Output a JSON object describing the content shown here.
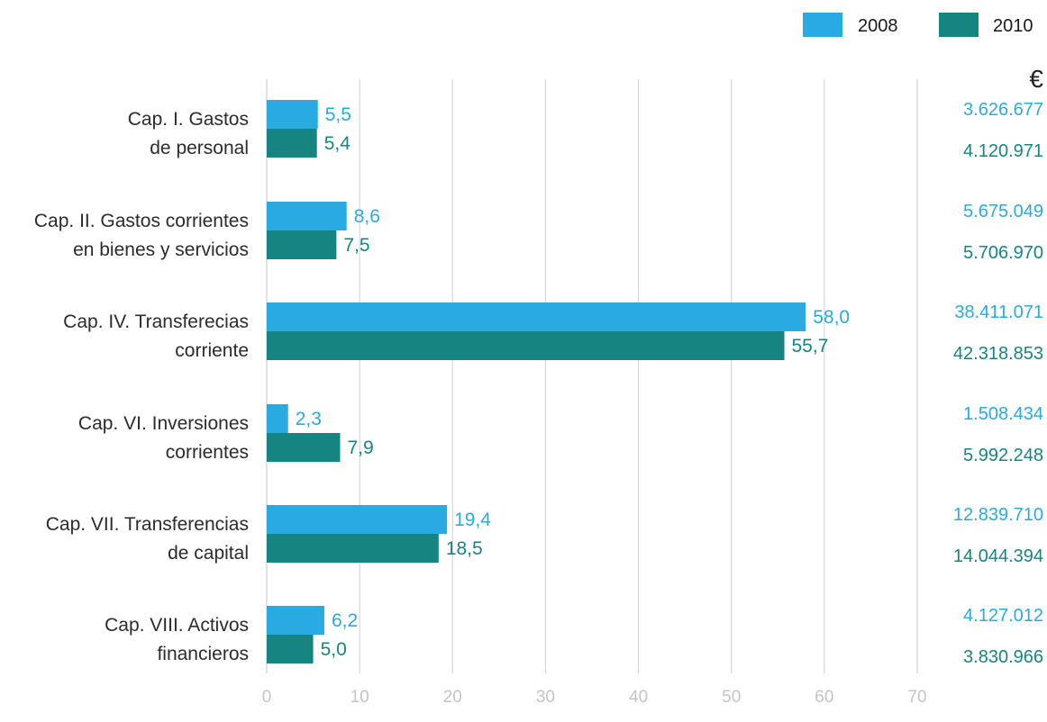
{
  "chart_data": {
    "type": "bar",
    "orientation": "horizontal",
    "categories": [
      [
        "Cap. I.  Gastos",
        "de personal"
      ],
      [
        "Cap. II.  Gastos corrientes",
        "en bienes y servicios"
      ],
      [
        "Cap. IV.  Transferecias",
        "corriente"
      ],
      [
        "Cap. VI.  Inversiones",
        "corrientes"
      ],
      [
        "Cap. VII.  Transferencias",
        "de capital"
      ],
      [
        "Cap. VIII.  Activos",
        "financieros"
      ]
    ],
    "series": [
      {
        "name": "2008",
        "color": "#29abe2",
        "values": [
          5.5,
          8.6,
          58.0,
          2.3,
          19.4,
          6.2
        ],
        "value_labels": [
          "5,5",
          "8,6",
          "58,0",
          "2,3",
          "19,4",
          "6,2"
        ],
        "euro_amounts": [
          "3.626.677",
          "5.675.049",
          "38.411.071",
          "1.508.434",
          "12.839.710",
          "4.127.012"
        ]
      },
      {
        "name": "2010",
        "color": "#168582",
        "values": [
          5.4,
          7.5,
          55.7,
          7.9,
          18.5,
          5.0
        ],
        "value_labels": [
          "5,4",
          "7,5",
          "55,7",
          "7,9",
          "18,5",
          "5,0"
        ],
        "euro_amounts": [
          "4.120.971",
          "5.706.970",
          "42.318.853",
          "5.992.248",
          "14.044.394",
          "3.830.966"
        ]
      }
    ],
    "xlim": [
      0,
      70
    ],
    "xticks": [
      0,
      10,
      20,
      30,
      40,
      50,
      60,
      70
    ],
    "grid": "vertical",
    "legend": "top-right",
    "euro_column_header": "€",
    "gridline_color": "#cfcfcf"
  }
}
